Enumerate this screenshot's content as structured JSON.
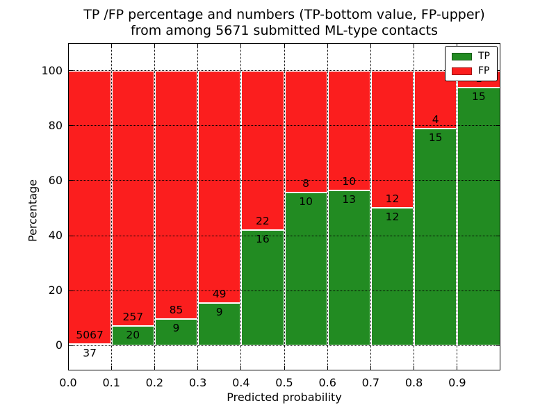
{
  "header": {
    "line1": "TP /FP percentage and numbers (TP-bottom value, FP-upper)",
    "line2": "from among 5671 submitted ML-type contacts"
  },
  "chart_data": {
    "type": "bar",
    "stacked": true,
    "title": "TP /FP percentage and numbers (TP-bottom value, FP-upper) from among 5671 submitted ML-type contacts",
    "xlabel": "Predicted probability",
    "ylabel": "Percentage",
    "total_contacts": 5671,
    "x_bin_starts": [
      0.0,
      0.1,
      0.2,
      0.3,
      0.4,
      0.5,
      0.6,
      0.7,
      0.8,
      0.9
    ],
    "bin_width": 0.1,
    "series": [
      {
        "name": "TP",
        "color": "#228b22",
        "counts": [
          37,
          20,
          9,
          9,
          16,
          10,
          13,
          12,
          15,
          15
        ]
      },
      {
        "name": "FP",
        "color": "#fb1e1e",
        "counts": [
          5067,
          257,
          85,
          49,
          22,
          8,
          10,
          12,
          4,
          1
        ]
      }
    ],
    "tp_percent_of_bin": [
      0.72,
      7.22,
      9.57,
      15.52,
      42.11,
      55.56,
      56.52,
      50.0,
      78.95,
      93.75
    ],
    "bars_sum_to_percent": 100,
    "xlim": [
      0.0,
      1.0
    ],
    "ylim": [
      -9,
      110
    ],
    "xticks": [
      "0.0",
      "0.1",
      "0.2",
      "0.3",
      "0.4",
      "0.5",
      "0.6",
      "0.7",
      "0.8",
      "0.9"
    ],
    "yticks": [
      0,
      20,
      40,
      60,
      80,
      100
    ],
    "grid": "dotted black, both axes",
    "legend": {
      "position": "upper right",
      "entries": [
        {
          "label": "TP",
          "color": "#228b22"
        },
        {
          "label": "FP",
          "color": "#fb1e1e"
        }
      ]
    }
  }
}
